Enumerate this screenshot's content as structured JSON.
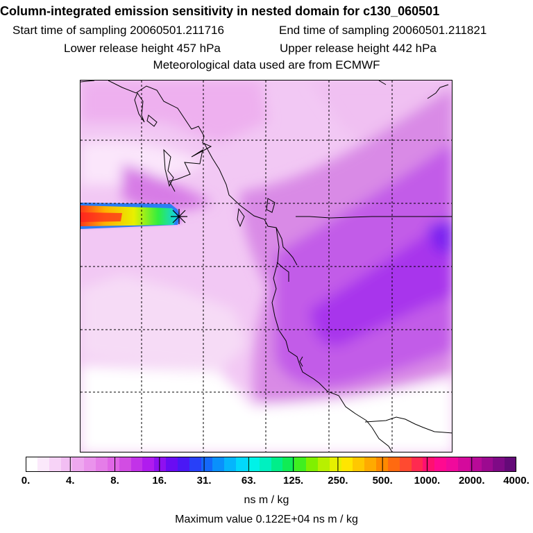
{
  "header": {
    "title": "Column-integrated emission sensitivity in nested domain for c130_060501",
    "start_time": "Start time of sampling 20060501.211716",
    "end_time": "End time of sampling 20060501.211821",
    "lower_release": "Lower release height  457 hPa",
    "upper_release": "Upper release height  442 hPa",
    "met_data": "Meteorological data used are from ECMWF"
  },
  "colorbar": {
    "ticks": [
      "0.",
      "4.",
      "8.",
      "16.",
      "31.",
      "63.",
      "125.",
      "250.",
      "500.",
      "1000.",
      "2000.",
      "4000."
    ],
    "colors": [
      "#ffffff",
      "#fbe9fb",
      "#f7d3f7",
      "#f2bef3",
      "#eea8ef",
      "#ea93ec",
      "#e57de8",
      "#e066e6",
      "#d24de3",
      "#c233e8",
      "#b01cee",
      "#8f10f0",
      "#6a0cf3",
      "#4a18f5",
      "#2840f8",
      "#1468fa",
      "#0a90fb",
      "#05b5fc",
      "#02d8fb",
      "#00f2e8",
      "#00f0c0",
      "#00ee8a",
      "#10ec55",
      "#40ef20",
      "#80f000",
      "#b8f000",
      "#e6f000",
      "#ffe600",
      "#ffc800",
      "#ffaa00",
      "#ff8a00",
      "#ff6a10",
      "#ff4a30",
      "#ff2a50",
      "#ff1070",
      "#ff0a90",
      "#f00a9c",
      "#d40a9c",
      "#b80a98",
      "#9c0a90",
      "#7f0a86",
      "#640a78"
    ],
    "units": "ns m / kg",
    "max_label": "Maximum value  0.122E+04 ns m / kg"
  }
}
